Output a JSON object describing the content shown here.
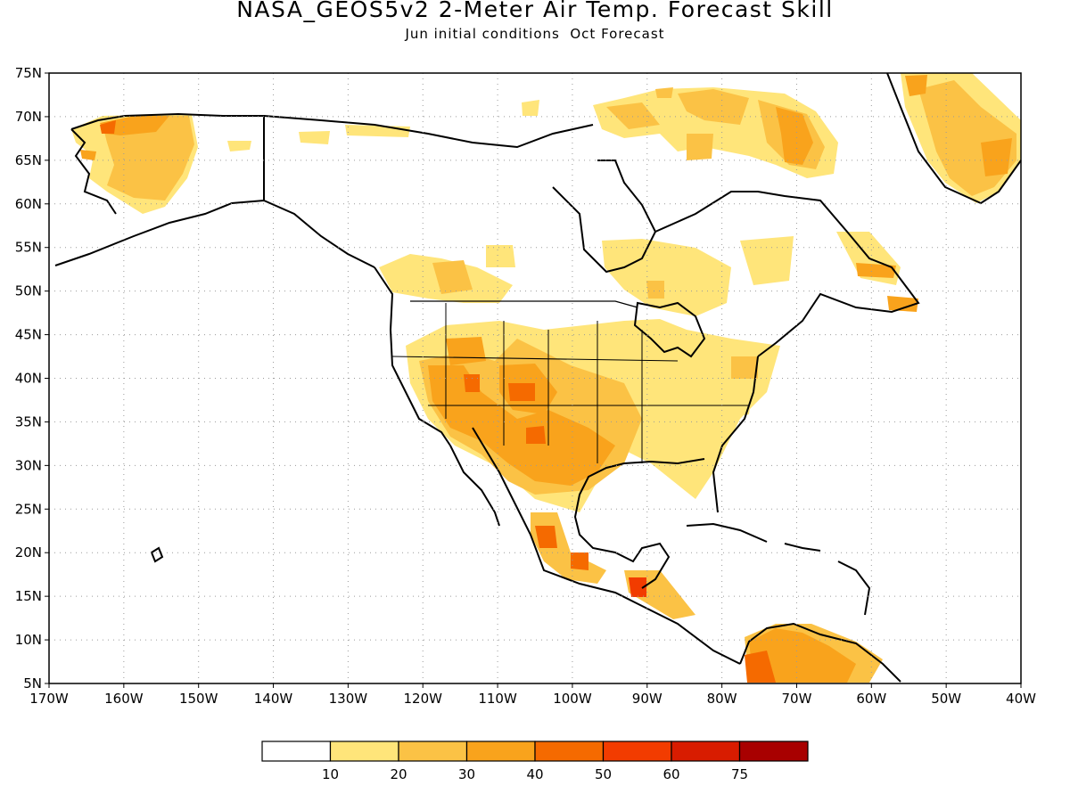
{
  "title": "NASA_GEOS5v2 2-Meter Air Temp. Forecast Skill",
  "subtitle": "Jun initial conditions  Oct Forecast",
  "map": {
    "lon_range": [
      -170,
      -40
    ],
    "lat_range": [
      5,
      75
    ],
    "lat_ticks": [
      "5N",
      "10N",
      "15N",
      "20N",
      "25N",
      "30N",
      "35N",
      "40N",
      "45N",
      "50N",
      "55N",
      "60N",
      "65N",
      "70N",
      "75N"
    ],
    "lon_ticks": [
      "170W",
      "160W",
      "150W",
      "140W",
      "130W",
      "120W",
      "110W",
      "100W",
      "90W",
      "80W",
      "70W",
      "60W",
      "50W",
      "40W"
    ],
    "grid": "dotted",
    "coastline_color": "#000000"
  },
  "legend": {
    "labels": [
      "10",
      "20",
      "30",
      "40",
      "50",
      "60",
      "75"
    ],
    "colors": [
      "#ffffff",
      "#ffe57a",
      "#fbc245",
      "#f9a31c",
      "#f56a00",
      "#f23c00",
      "#d81c00",
      "#a80000"
    ]
  },
  "colors": {
    "c1": "#ffe57a",
    "c2": "#fbc245",
    "c3": "#f9a31c",
    "c4": "#f56a00",
    "c5": "#f23c00"
  }
}
